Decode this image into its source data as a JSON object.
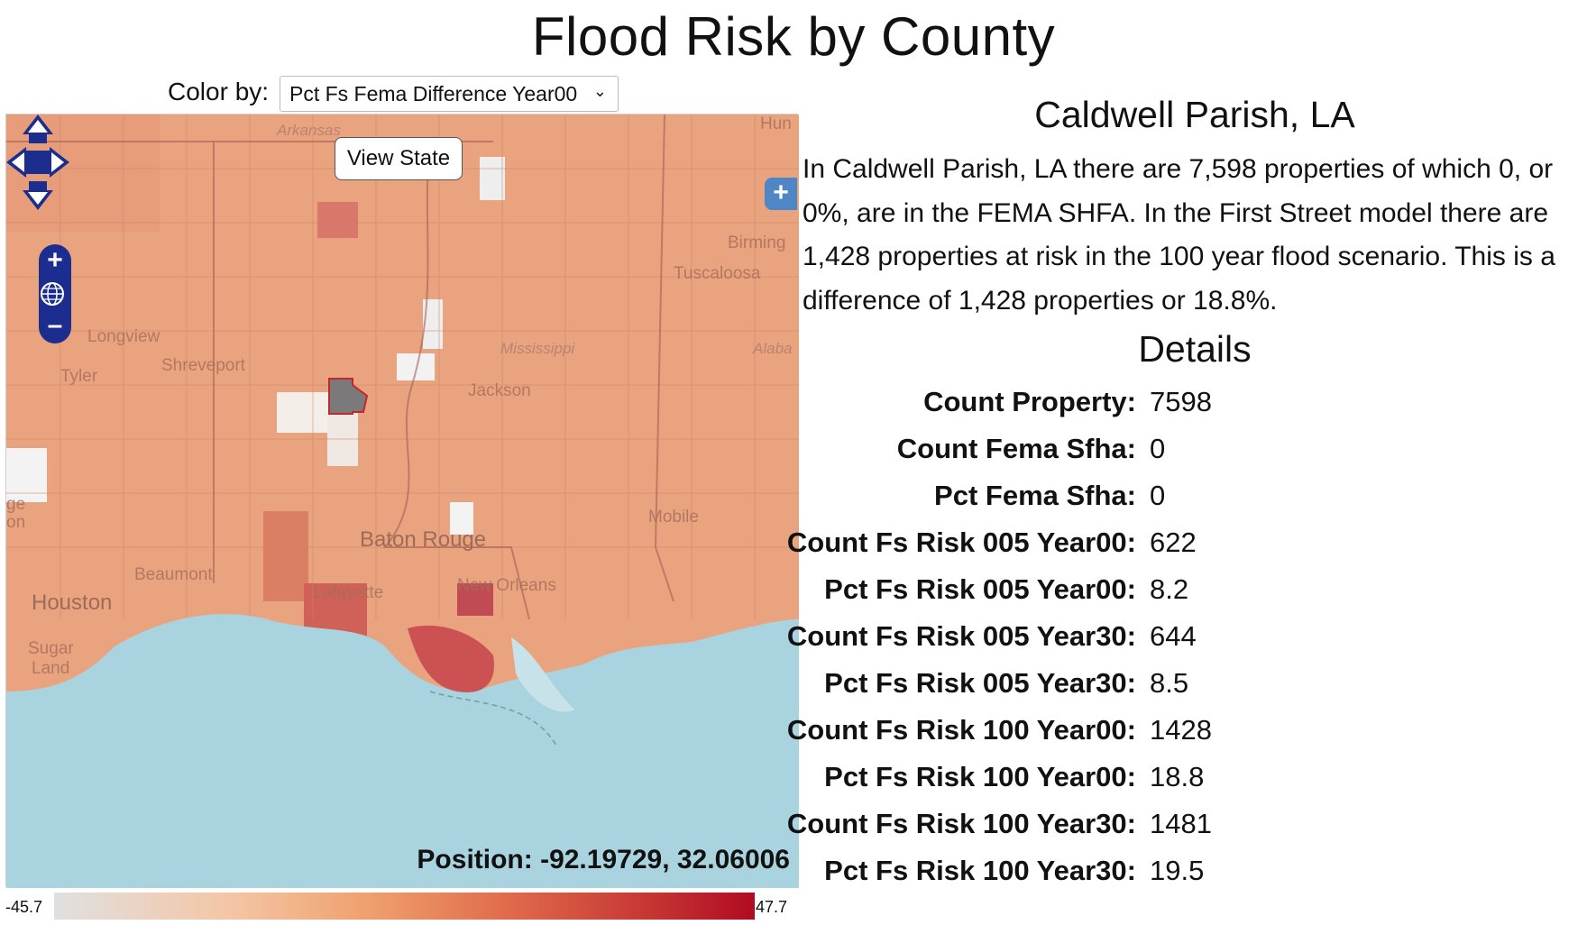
{
  "page": {
    "title": "Flood Risk by County"
  },
  "controls": {
    "color_by_label": "Color by:",
    "color_by_value": "Pct Fs Fema Difference Year00"
  },
  "map": {
    "view_state_label": "View State",
    "position_text": "Position: -92.19729, 32.06006",
    "cities": {
      "arkansas": "Arkansas",
      "hun": "Hun",
      "birming": "Birming",
      "tuscaloosa": "Tuscaloosa",
      "longview": "Longview",
      "shreveport": "Shreveport",
      "tyler": "Tyler",
      "mississippi": "Mississippi",
      "alaba": "Alaba",
      "jackson": "Jackson",
      "mobile": "Mobile",
      "baton_rouge": "Baton Rouge",
      "beaumont": "Beaumont",
      "houston": "Houston",
      "lafayette": "Lafayette",
      "new_orleans": "New Orleans",
      "sugar": "Sugar",
      "land": "Land",
      "ge": "ge",
      "on": "on"
    },
    "icons": [
      "pan-arrows-icon",
      "zoom-in-icon",
      "globe-icon",
      "zoom-out-icon",
      "layer-switcher-icon"
    ]
  },
  "legend": {
    "min": "-45.7",
    "max": "47.7"
  },
  "county": {
    "name": "Caldwell Parish, LA",
    "summary": "In Caldwell Parish, LA there are 7,598 properties of which 0, or 0%, are in the FEMA SHFA. In the First Street model there are 1,428 properties at risk in the 100 year flood scenario. This is a difference of 1,428 properties or 18.8%."
  },
  "details": {
    "title": "Details",
    "rows": [
      {
        "label": "Count Property:",
        "value": "7598"
      },
      {
        "label": "Count Fema Sfha:",
        "value": "0"
      },
      {
        "label": "Pct Fema Sfha:",
        "value": "0"
      },
      {
        "label": "Count Fs Risk 005 Year00:",
        "value": "622"
      },
      {
        "label": "Pct Fs Risk 005 Year00:",
        "value": "8.2"
      },
      {
        "label": "Count Fs Risk 005 Year30:",
        "value": "644"
      },
      {
        "label": "Pct Fs Risk 005 Year30:",
        "value": "8.5"
      },
      {
        "label": "Count Fs Risk 100 Year00:",
        "value": "1428"
      },
      {
        "label": "Pct Fs Risk 100 Year00:",
        "value": "18.8"
      },
      {
        "label": "Count Fs Risk 100 Year30:",
        "value": "1481"
      },
      {
        "label": "Pct Fs Risk 100 Year30:",
        "value": "19.5"
      }
    ]
  },
  "colors": {
    "county_fill": "#e9a47f",
    "water": "#a8d3df",
    "selected_county": "#7a7a7a",
    "control_blue": "#1b2d8e",
    "layer_blue": "#4f86c6"
  }
}
